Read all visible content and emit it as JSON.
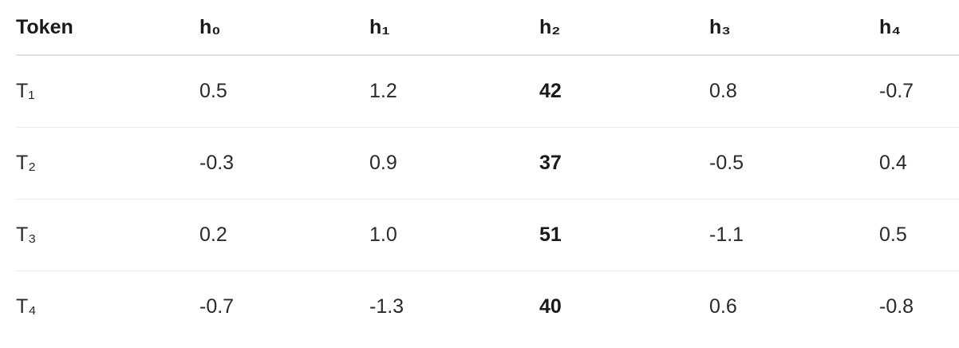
{
  "table": {
    "headers": [
      "Token",
      "h₀",
      "h₁",
      "h₂",
      "h₃",
      "h₄"
    ],
    "rows": [
      [
        "T₁",
        "0.5",
        "1.2",
        "42",
        "0.8",
        "-0.7"
      ],
      [
        "T₂",
        "-0.3",
        "0.9",
        "37",
        "-0.5",
        "0.4"
      ],
      [
        "T₃",
        "0.2",
        "1.0",
        "51",
        "-1.1",
        "0.5"
      ],
      [
        "T₄",
        "-0.7",
        "-1.3",
        "40",
        "0.6",
        "-0.8"
      ]
    ],
    "bold_column": 3
  }
}
